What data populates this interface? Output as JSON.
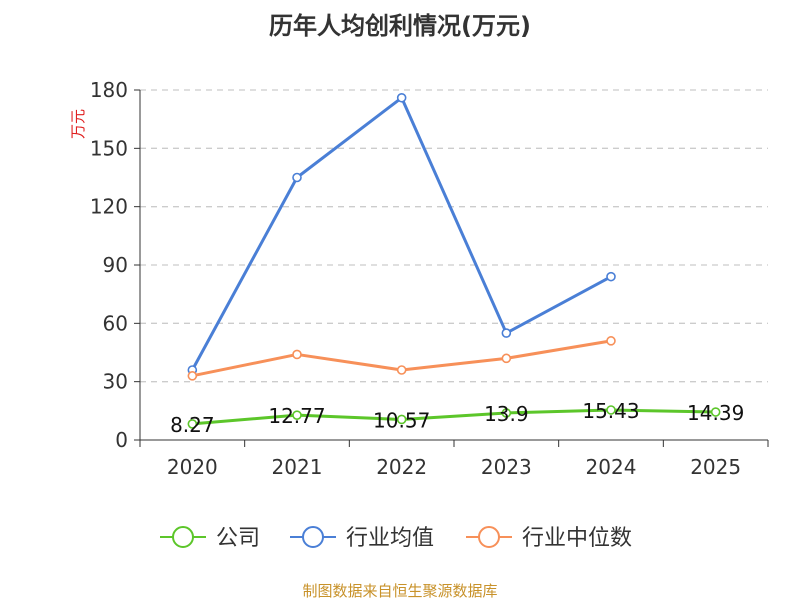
{
  "chart_data": {
    "type": "line",
    "title": "历年人均创利情况(万元)",
    "ylabel": "万元",
    "xlabel": "",
    "categories": [
      "2020",
      "2021",
      "2022",
      "2023",
      "2024",
      "2025"
    ],
    "ylim": [
      0,
      180
    ],
    "yticks": [
      0,
      30,
      60,
      90,
      120,
      150,
      180
    ],
    "grid": "horizontal-dashed",
    "legend_position": "bottom",
    "series": [
      {
        "name": "公司",
        "color": "#5cc62a",
        "values": [
          8.27,
          12.77,
          10.57,
          13.9,
          15.43,
          14.39
        ],
        "labels": [
          "8.27",
          "12.77",
          "10.57",
          "13.9",
          "15.43",
          "14.39"
        ]
      },
      {
        "name": "行业均值",
        "color": "#4a7fd6",
        "values": [
          36,
          135,
          176,
          55,
          84,
          null
        ]
      },
      {
        "name": "行业中位数",
        "color": "#f79059",
        "values": [
          33,
          44,
          36,
          42,
          51,
          null
        ]
      }
    ]
  },
  "source": "制图数据来自恒生聚源数据库"
}
